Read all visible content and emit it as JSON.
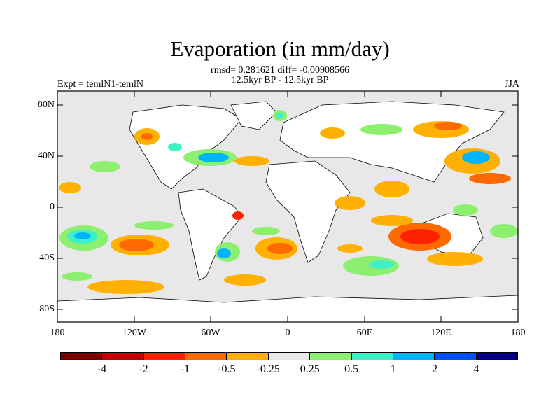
{
  "title": "Evaporation (in mm/day)",
  "stats": "rmsd= 0.281621 diff= -0.00908566",
  "subtitle": "12.5kyr BP - 12.5kyr BP",
  "left_label": "Expt = temlN1-temlN",
  "right_label": "JJA",
  "lat_ticks": [
    "80N",
    "40N",
    "0",
    "40S",
    "80S"
  ],
  "lon_ticks": [
    "180",
    "120W",
    "60W",
    "0",
    "60E",
    "120E",
    "180"
  ],
  "colorbar": {
    "colors": [
      "#7a0000",
      "#c00000",
      "#ff2000",
      "#ff6a00",
      "#ffb000",
      "#e8e8e8",
      "#8cf06e",
      "#3ef0c8",
      "#00b4ff",
      "#0050ff",
      "#000080"
    ],
    "labels": [
      "-4",
      "-2",
      "-1",
      "-0.5",
      "-0.25",
      "0.25",
      "0.5",
      "1",
      "2",
      "4"
    ]
  },
  "colors": {
    "neutral": "#e8e8e8",
    "orange": "#ffb000",
    "dark_orange": "#ff6a00",
    "red": "#ff2000",
    "green": "#8cf06e",
    "teal": "#3ef0c8",
    "blue": "#00b4ff"
  }
}
